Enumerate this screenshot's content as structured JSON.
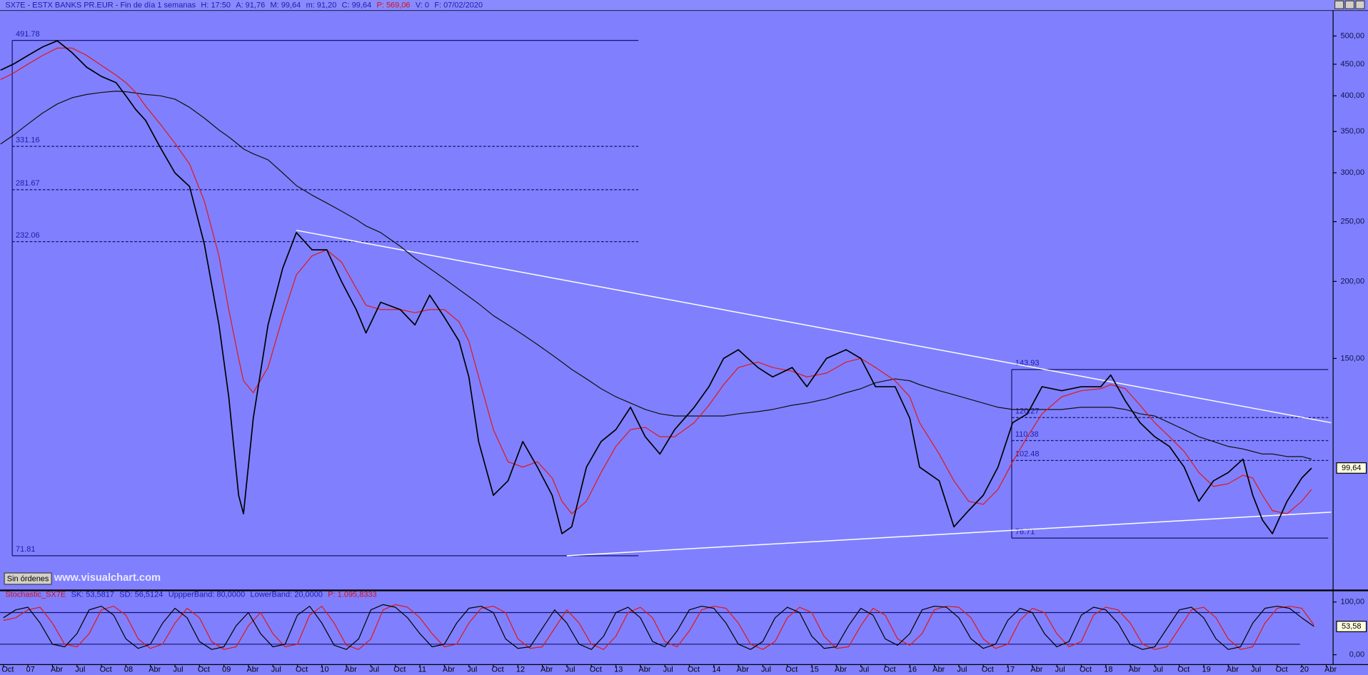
{
  "chart_data": [
    {
      "type": "line",
      "log_scale": true,
      "header": [
        "SX7E - ESTX BANKS PR.EUR - Fin de día 1 semanas",
        "H: 17:50",
        "A: 91,76",
        "M: 99,64",
        "m: 91,20",
        "C: 99,64",
        "P: 569,06",
        "V: 0",
        "F: 07/02/2020"
      ],
      "xlim": [
        2006.715,
        2020.32
      ],
      "ylim": [
        63.3,
        550
      ],
      "yticks": [
        {
          "value": 500,
          "label": "500,00"
        },
        {
          "value": 450,
          "label": "450,00"
        },
        {
          "value": 400,
          "label": "400,00"
        },
        {
          "value": 350,
          "label": "350,00"
        },
        {
          "value": 300,
          "label": "300,00"
        },
        {
          "value": 250,
          "label": "250,00"
        },
        {
          "value": 200,
          "label": "200,00"
        },
        {
          "value": 150,
          "label": "150,00"
        }
      ],
      "xticks": [
        {
          "value": 2006.75,
          "label": "Oct"
        },
        {
          "value": 2007,
          "label": "07"
        },
        {
          "value": 2007.25,
          "label": "Abr"
        },
        {
          "value": 2007.5,
          "label": "Jul"
        },
        {
          "value": 2007.75,
          "label": "Oct"
        },
        {
          "value": 2008,
          "label": "08"
        },
        {
          "value": 2008.25,
          "label": "Abr"
        },
        {
          "value": 2008.5,
          "label": "Jul"
        },
        {
          "value": 2008.75,
          "label": "Oct"
        },
        {
          "value": 2009,
          "label": "09"
        },
        {
          "value": 2009.25,
          "label": "Abr"
        },
        {
          "value": 2009.5,
          "label": "Jul"
        },
        {
          "value": 2009.75,
          "label": "Oct"
        },
        {
          "value": 2010,
          "label": "10"
        },
        {
          "value": 2010.25,
          "label": "Abr"
        },
        {
          "value": 2010.5,
          "label": "Jul"
        },
        {
          "value": 2010.75,
          "label": "Oct"
        },
        {
          "value": 2011,
          "label": "11"
        },
        {
          "value": 2011.25,
          "label": "Abr"
        },
        {
          "value": 2011.5,
          "label": "Jul"
        },
        {
          "value": 2011.75,
          "label": "Oct"
        },
        {
          "value": 2012,
          "label": "12"
        },
        {
          "value": 2012.25,
          "label": "Abr"
        },
        {
          "value": 2012.5,
          "label": "Jul"
        },
        {
          "value": 2012.75,
          "label": "Oct"
        },
        {
          "value": 2013,
          "label": "13"
        },
        {
          "value": 2013.25,
          "label": "Abr"
        },
        {
          "value": 2013.5,
          "label": "Jul"
        },
        {
          "value": 2013.75,
          "label": "Oct"
        },
        {
          "value": 2014,
          "label": "14"
        },
        {
          "value": 2014.25,
          "label": "Abr"
        },
        {
          "value": 2014.5,
          "label": "Jul"
        },
        {
          "value": 2014.75,
          "label": "Oct"
        },
        {
          "value": 2015,
          "label": "15"
        },
        {
          "value": 2015.25,
          "label": "Abr"
        },
        {
          "value": 2015.5,
          "label": "Jul"
        },
        {
          "value": 2015.75,
          "label": "Oct"
        },
        {
          "value": 2016,
          "label": "16"
        },
        {
          "value": 2016.25,
          "label": "Abr"
        },
        {
          "value": 2016.5,
          "label": "Jul"
        },
        {
          "value": 2016.75,
          "label": "Oct"
        },
        {
          "value": 2017,
          "label": "17"
        },
        {
          "value": 2017.25,
          "label": "Abr"
        },
        {
          "value": 2017.5,
          "label": "Jul"
        },
        {
          "value": 2017.75,
          "label": "Oct"
        },
        {
          "value": 2018,
          "label": "18"
        },
        {
          "value": 2018.25,
          "label": "Abr"
        },
        {
          "value": 2018.5,
          "label": "Jul"
        },
        {
          "value": 2018.75,
          "label": "Oct"
        },
        {
          "value": 2019,
          "label": "19"
        },
        {
          "value": 2019.25,
          "label": "Abr"
        },
        {
          "value": 2019.5,
          "label": "Jul"
        },
        {
          "value": 2019.75,
          "label": "Oct"
        },
        {
          "value": 2020,
          "label": "20"
        },
        {
          "value": 2020.25,
          "label": "Abr"
        }
      ],
      "x": [
        2006.72,
        2006.85,
        2007.0,
        2007.15,
        2007.3,
        2007.45,
        2007.6,
        2007.75,
        2007.9,
        2008.0,
        2008.1,
        2008.2,
        2008.35,
        2008.5,
        2008.65,
        2008.8,
        2008.95,
        2009.05,
        2009.15,
        2009.2,
        2009.3,
        2009.45,
        2009.6,
        2009.74,
        2009.9,
        2010.05,
        2010.2,
        2010.35,
        2010.45,
        2010.6,
        2010.8,
        2010.95,
        2011.1,
        2011.25,
        2011.4,
        2011.5,
        2011.6,
        2011.75,
        2011.9,
        2012.05,
        2012.2,
        2012.35,
        2012.45,
        2012.55,
        2012.7,
        2012.85,
        2013.0,
        2013.15,
        2013.3,
        2013.45,
        2013.6,
        2013.8,
        2013.95,
        2014.1,
        2014.25,
        2014.45,
        2014.6,
        2014.8,
        2014.95,
        2015.15,
        2015.35,
        2015.5,
        2015.65,
        2015.85,
        2016.0,
        2016.1,
        2016.3,
        2016.45,
        2016.6,
        2016.75,
        2016.9,
        2017.05,
        2017.2,
        2017.35,
        2017.55,
        2017.75,
        2017.95,
        2018.05,
        2018.2,
        2018.35,
        2018.5,
        2018.65,
        2018.8,
        2018.95,
        2019.1,
        2019.25,
        2019.4,
        2019.5,
        2019.6,
        2019.7,
        2019.85,
        2020.0,
        2020.1
      ],
      "series": [
        {
          "color": "#000000",
          "values": [
            440,
            450,
            465,
            480,
            491,
            470,
            445,
            430,
            420,
            400,
            380,
            365,
            330,
            300,
            285,
            230,
            170,
            130,
            90,
            84,
            120,
            170,
            210,
            240,
            225,
            225,
            200,
            180,
            165,
            185,
            180,
            170,
            190,
            175,
            160,
            140,
            110,
            90,
            95,
            110,
            100,
            90,
            78,
            80,
            100,
            110,
            115,
            125,
            112,
            105,
            115,
            125,
            135,
            150,
            155,
            145,
            140,
            145,
            135,
            150,
            155,
            150,
            135,
            135,
            120,
            100,
            95,
            80,
            85,
            90,
            100,
            118,
            122,
            135,
            133,
            135,
            135,
            141,
            128,
            118,
            112,
            108,
            100,
            88,
            95,
            98,
            103,
            90,
            82,
            78,
            88,
            96,
            99.64
          ]
        },
        {
          "color": "#e01818",
          "values": [
            425,
            435,
            450,
            465,
            478,
            478,
            465,
            448,
            432,
            420,
            405,
            385,
            360,
            335,
            310,
            270,
            220,
            180,
            150,
            138,
            132,
            145,
            175,
            205,
            220,
            225,
            215,
            195,
            183,
            180,
            180,
            178,
            180,
            180,
            172,
            160,
            140,
            115,
            102,
            100,
            102,
            96,
            88,
            84,
            88,
            98,
            108,
            115,
            116,
            112,
            112,
            118,
            126,
            136,
            145,
            148,
            145,
            143,
            140,
            142,
            148,
            150,
            145,
            138,
            130,
            118,
            105,
            95,
            88,
            87,
            92,
            102,
            112,
            122,
            130,
            133,
            134,
            136,
            134,
            126,
            118,
            112,
            106,
            98,
            93,
            94,
            97,
            96,
            90,
            85,
            84,
            88,
            92
          ]
        },
        {
          "color": "#101010",
          "values": [
            334,
            345,
            360,
            375,
            388,
            397,
            402,
            405,
            407,
            406,
            404,
            402,
            400,
            395,
            383,
            368,
            352,
            343,
            333,
            328,
            322,
            315,
            300,
            286,
            276,
            268,
            260,
            252,
            246,
            240,
            228,
            218,
            210,
            202,
            194,
            189,
            184,
            176,
            170,
            164,
            158,
            152,
            148,
            144,
            139,
            134,
            130,
            127,
            124,
            122,
            121,
            121,
            121,
            121,
            122,
            123,
            124,
            126,
            127,
            129,
            132,
            134,
            137,
            139,
            138,
            136,
            133,
            131,
            129,
            127,
            125,
            124,
            124,
            124,
            124,
            125,
            125,
            125,
            124,
            122,
            121,
            118,
            115,
            112,
            110,
            108,
            107,
            106,
            105,
            105,
            104,
            104,
            103
          ]
        }
      ],
      "fib_ranges": [
        {
          "x": [
            2006.84,
            2013.23
          ],
          "levels": [
            491.78,
            331.16,
            281.67,
            232.06,
            71.81
          ]
        },
        {
          "x": [
            2017.04,
            2020.27
          ],
          "levels": [
            143.93,
            120.27,
            110.38,
            102.48,
            76.71
          ]
        }
      ],
      "trendlines": [
        {
          "x": [
            2009.74,
            2020.3
          ],
          "y": [
            242,
            118
          ]
        },
        {
          "x": [
            2012.5,
            2020.3
          ],
          "y": [
            71.81,
            84.5
          ]
        }
      ],
      "last_label": "99,64",
      "button": "Sin órdenes",
      "watermark": "www.visualchart.com"
    },
    {
      "type": "line",
      "log_scale": false,
      "header": [
        "Stochastic_SX7E",
        "SK: 53,5817",
        "SD: 56,5124",
        "UppperBand: 80,0000",
        "LowerBand: 20,0000",
        "P: 1.095,8333"
      ],
      "xlim": [
        2006.715,
        2020.32
      ],
      "ylim": [
        -18.6,
        120.3
      ],
      "yticks": [
        {
          "value": 100,
          "label": "100,00"
        },
        {
          "value": 0,
          "label": "0,00"
        }
      ],
      "bands": [
        80,
        20
      ],
      "x": [
        2006.75,
        2006.875,
        2007,
        2007.125,
        2007.25,
        2007.375,
        2007.5,
        2007.625,
        2007.75,
        2007.875,
        2008,
        2008.125,
        2008.25,
        2008.375,
        2008.5,
        2008.625,
        2008.75,
        2008.875,
        2009,
        2009.125,
        2009.25,
        2009.375,
        2009.5,
        2009.625,
        2009.75,
        2009.875,
        2010,
        2010.125,
        2010.25,
        2010.375,
        2010.5,
        2010.625,
        2010.75,
        2010.875,
        2011,
        2011.125,
        2011.25,
        2011.375,
        2011.5,
        2011.625,
        2011.75,
        2011.875,
        2012,
        2012.125,
        2012.25,
        2012.375,
        2012.5,
        2012.625,
        2012.75,
        2012.875,
        2013,
        2013.125,
        2013.25,
        2013.375,
        2013.5,
        2013.625,
        2013.75,
        2013.875,
        2014,
        2014.125,
        2014.25,
        2014.375,
        2014.5,
        2014.625,
        2014.75,
        2014.875,
        2015,
        2015.125,
        2015.25,
        2015.375,
        2015.5,
        2015.625,
        2015.75,
        2015.875,
        2016,
        2016.125,
        2016.25,
        2016.375,
        2016.5,
        2016.625,
        2016.75,
        2016.875,
        2017,
        2017.125,
        2017.25,
        2017.375,
        2017.5,
        2017.625,
        2017.75,
        2017.875,
        2018,
        2018.125,
        2018.25,
        2018.375,
        2018.5,
        2018.625,
        2018.75,
        2018.875,
        2019,
        2019.125,
        2019.25,
        2019.375,
        2019.5,
        2019.625,
        2019.75,
        2019.875,
        2020,
        2020.125
      ],
      "series": [
        {
          "color": "#000000",
          "values": [
            70,
            85,
            90,
            60,
            20,
            15,
            40,
            85,
            92,
            75,
            30,
            12,
            20,
            60,
            88,
            70,
            25,
            10,
            15,
            55,
            80,
            40,
            15,
            20,
            75,
            92,
            60,
            18,
            10,
            30,
            85,
            95,
            90,
            70,
            40,
            15,
            20,
            60,
            88,
            92,
            80,
            30,
            12,
            15,
            50,
            85,
            60,
            20,
            10,
            35,
            80,
            90,
            70,
            25,
            15,
            45,
            85,
            92,
            88,
            60,
            20,
            10,
            25,
            70,
            90,
            80,
            35,
            12,
            15,
            55,
            88,
            75,
            30,
            18,
            40,
            85,
            92,
            90,
            70,
            30,
            12,
            20,
            65,
            88,
            80,
            40,
            15,
            25,
            75,
            90,
            85,
            60,
            20,
            10,
            15,
            50,
            85,
            90,
            70,
            30,
            10,
            15,
            60,
            88,
            92,
            88,
            70,
            53.58
          ]
        },
        {
          "color": "#e01818",
          "values": [
            65,
            70,
            85,
            90,
            60,
            20,
            15,
            40,
            85,
            92,
            75,
            30,
            12,
            20,
            60,
            88,
            70,
            25,
            10,
            15,
            55,
            80,
            40,
            15,
            20,
            75,
            92,
            60,
            18,
            10,
            30,
            85,
            95,
            90,
            70,
            40,
            15,
            20,
            60,
            88,
            92,
            80,
            30,
            12,
            15,
            50,
            85,
            60,
            20,
            10,
            35,
            80,
            90,
            70,
            25,
            15,
            45,
            85,
            92,
            88,
            60,
            20,
            10,
            25,
            70,
            90,
            80,
            35,
            12,
            15,
            55,
            88,
            75,
            30,
            18,
            40,
            85,
            92,
            90,
            70,
            30,
            12,
            20,
            65,
            88,
            80,
            40,
            15,
            25,
            75,
            90,
            85,
            60,
            20,
            10,
            15,
            50,
            85,
            90,
            70,
            30,
            10,
            15,
            60,
            88,
            92,
            88,
            56.51
          ]
        }
      ],
      "last_label": "53,58"
    }
  ]
}
